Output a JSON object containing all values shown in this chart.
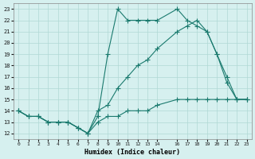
{
  "line1_x": [
    0,
    1,
    2,
    3,
    4,
    5,
    6,
    7,
    8,
    9,
    10,
    11,
    12,
    13,
    14,
    16,
    17,
    18,
    19,
    20,
    21,
    22,
    23
  ],
  "line1_y": [
    14,
    13.5,
    13.5,
    13,
    13,
    13,
    12.5,
    12,
    13.5,
    19,
    23,
    22,
    22,
    22,
    22,
    23,
    22,
    21.5,
    21,
    19,
    16.5,
    15,
    15
  ],
  "line2_x": [
    0,
    1,
    2,
    3,
    4,
    5,
    6,
    7,
    8,
    9,
    10,
    11,
    12,
    13,
    14,
    16,
    17,
    18,
    19,
    20,
    21,
    22,
    23
  ],
  "line2_y": [
    14,
    13.5,
    13.5,
    13,
    13,
    13,
    12.5,
    12,
    14,
    14.5,
    16,
    17,
    18,
    18.5,
    19.5,
    21,
    21.5,
    22,
    21,
    19,
    17,
    15,
    15
  ],
  "line3_x": [
    0,
    1,
    2,
    3,
    4,
    5,
    6,
    7,
    8,
    9,
    10,
    11,
    12,
    13,
    14,
    16,
    17,
    18,
    19,
    20,
    21,
    22,
    23
  ],
  "line3_y": [
    14,
    13.5,
    13.5,
    13,
    13,
    13,
    12.5,
    12,
    13,
    13.5,
    13.5,
    14,
    14,
    14,
    14.5,
    15,
    15,
    15,
    15,
    15,
    15,
    15,
    15
  ],
  "color": "#1a7a6e",
  "bg_color": "#d6f0ef",
  "grid_color": "#b0d8d4",
  "xlabel": "Humidex (Indice chaleur)",
  "yticks": [
    12,
    13,
    14,
    15,
    16,
    17,
    18,
    19,
    20,
    21,
    22,
    23
  ],
  "xticks": [
    0,
    1,
    2,
    3,
    4,
    5,
    6,
    7,
    8,
    9,
    10,
    11,
    12,
    13,
    14,
    16,
    17,
    18,
    19,
    20,
    21,
    22,
    23
  ],
  "ylim": [
    11.5,
    23.5
  ],
  "xlim": [
    -0.5,
    23.5
  ]
}
